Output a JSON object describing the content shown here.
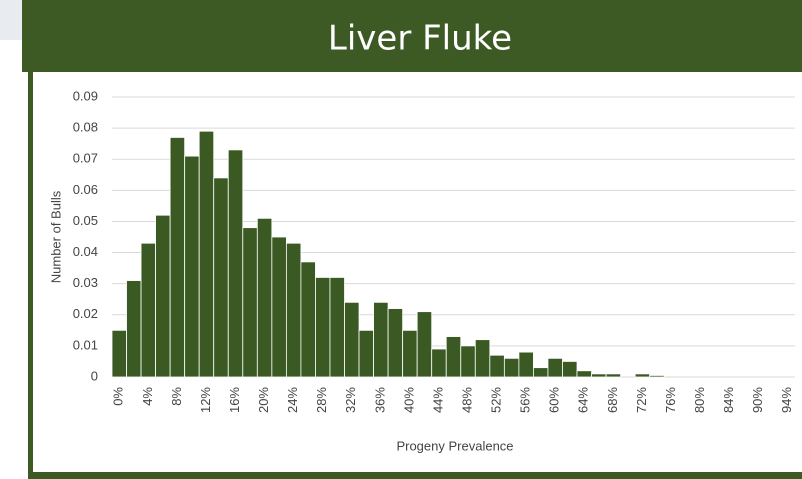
{
  "chart_data": {
    "type": "bar",
    "title": "Liver Fluke",
    "ylabel": "Number of Bulls",
    "xlabel": "Progeny Prevalence",
    "categories": [
      "0%",
      null,
      "4%",
      null,
      "8%",
      null,
      "12%",
      null,
      "16%",
      null,
      "20%",
      null,
      "24%",
      null,
      "28%",
      null,
      "32%",
      null,
      "36%",
      null,
      "40%",
      null,
      "44%",
      null,
      "48%",
      null,
      "52%",
      null,
      "56%",
      null,
      "60%",
      null,
      "64%",
      null,
      "68%",
      null,
      "72%",
      null,
      "76%",
      null,
      "80%",
      null,
      "84%",
      null,
      "90%",
      null,
      "94%"
    ],
    "values": [
      0.015,
      0.031,
      0.043,
      0.052,
      0.077,
      0.071,
      0.079,
      0.064,
      0.073,
      0.048,
      0.051,
      0.045,
      0.043,
      0.037,
      0.032,
      0.032,
      0.024,
      0.015,
      0.024,
      0.022,
      0.015,
      0.021,
      0.009,
      0.013,
      0.01,
      0.012,
      0.007,
      0.006,
      0.008,
      0.003,
      0.006,
      0.005,
      0.002,
      0.001,
      0.001,
      0,
      0.001,
      0.0005,
      0,
      0,
      0,
      0,
      0,
      0,
      0,
      0,
      0
    ],
    "color": "#3b5a23",
    "ylim": [
      0,
      0.09
    ],
    "yticks": [
      0,
      0.01,
      0.02,
      0.03,
      0.04,
      0.05,
      0.06,
      0.07,
      0.08,
      0.09
    ],
    "grid": true
  }
}
